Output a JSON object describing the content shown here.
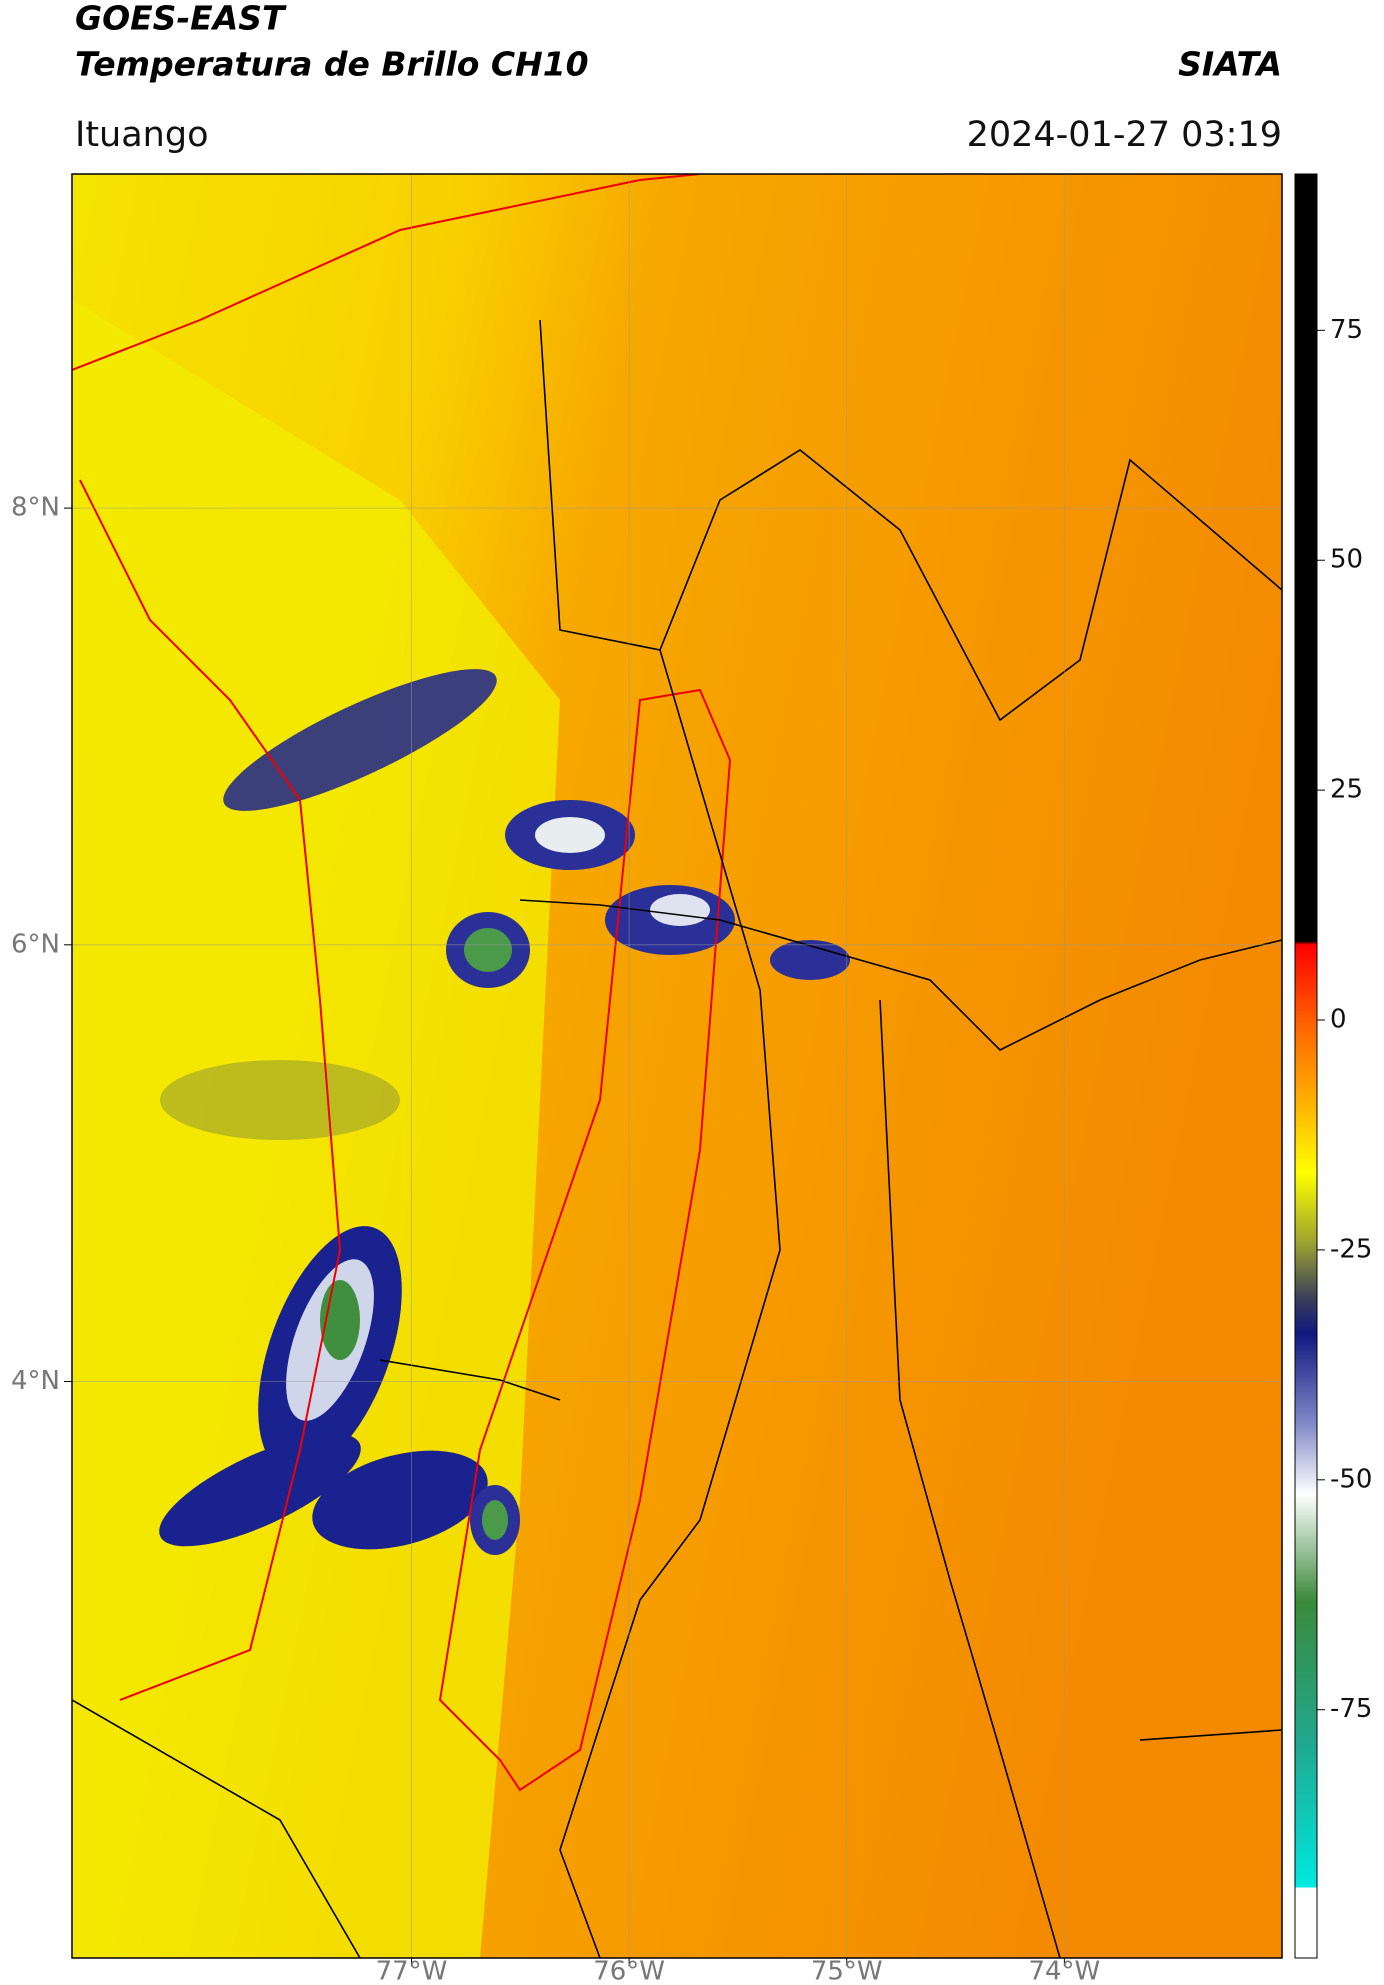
{
  "header": {
    "title": "GOES-EAST",
    "subtitle": "Temperatura de Brillo CH10",
    "brand": "SIATA",
    "region": "Ituango",
    "timestamp": "2024-01-27 03:19"
  },
  "map": {
    "lon_range": [
      -78.56,
      -73.0
    ],
    "lat_range": [
      1.36,
      9.53
    ],
    "lat_ticks": [
      {
        "value": 8,
        "label": "8°N"
      },
      {
        "value": 6,
        "label": "6°N"
      },
      {
        "value": 4,
        "label": "4°N"
      }
    ],
    "lon_ticks": [
      {
        "value": -77,
        "label": "77°W"
      },
      {
        "value": -76,
        "label": "76°W"
      },
      {
        "value": -75,
        "label": "75°W"
      },
      {
        "value": -74,
        "label": "74°W"
      }
    ]
  },
  "colorbar": {
    "range": [
      -102,
      92
    ],
    "ticks": [
      75,
      50,
      25,
      0,
      -25,
      -50,
      -75
    ]
  }
}
